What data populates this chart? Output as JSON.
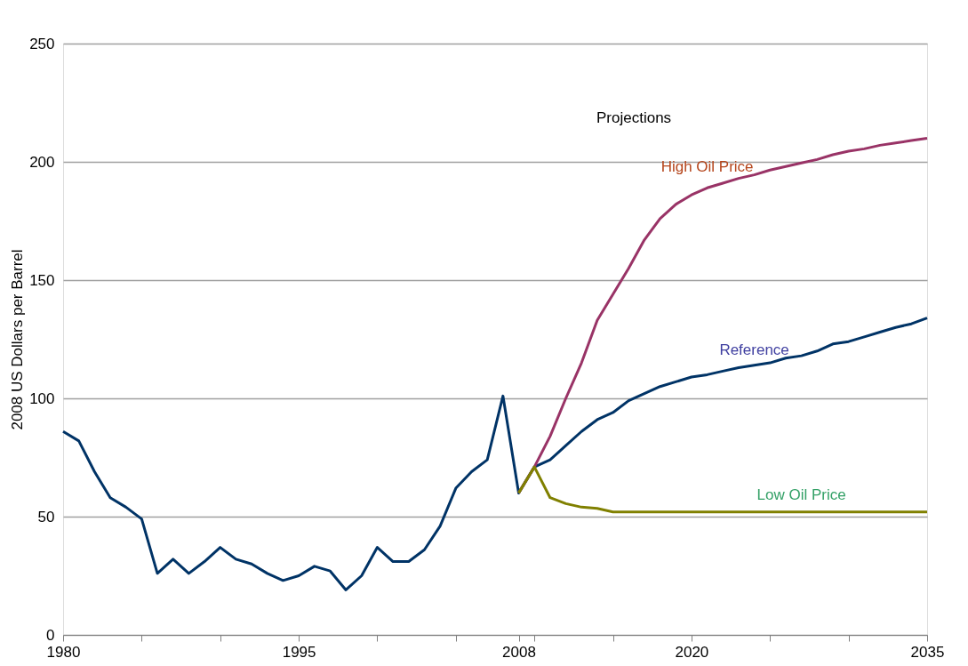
{
  "chart_data": {
    "type": "line",
    "ylabel": "2008 US Dollars per Barrel",
    "categories": [
      "1980",
      null,
      null,
      null,
      null,
      null,
      null,
      null,
      null,
      null,
      null,
      null,
      null,
      null,
      null,
      "1995",
      null,
      null,
      null,
      null,
      null,
      null,
      null,
      null,
      null,
      null,
      null,
      null,
      null,
      "2008",
      null,
      null,
      null,
      null,
      null,
      null,
      null,
      null,
      null,
      null,
      "2020",
      null,
      null,
      null,
      null,
      null,
      null,
      null,
      null,
      null,
      null,
      null,
      null,
      null,
      null,
      "2035"
    ],
    "series": [
      {
        "name": "Reference",
        "color": "#003366",
        "values": [
          86,
          82,
          69,
          58,
          54,
          49,
          26,
          32,
          26,
          31,
          37,
          32,
          30,
          26,
          23,
          25,
          29,
          27,
          19,
          25,
          37,
          31,
          31,
          36,
          46,
          62,
          69,
          74,
          101,
          60,
          71,
          74,
          80,
          86,
          91,
          94,
          99,
          102,
          105,
          107,
          109,
          110,
          111.5,
          113,
          114,
          115,
          117,
          118,
          120,
          123,
          124,
          126,
          128,
          130,
          131.5,
          134
        ]
      },
      {
        "name": "High Oil Price",
        "color": "#993366",
        "values": [
          null,
          null,
          null,
          null,
          null,
          null,
          null,
          null,
          null,
          null,
          null,
          null,
          null,
          null,
          null,
          null,
          null,
          null,
          null,
          null,
          null,
          null,
          null,
          null,
          null,
          null,
          null,
          null,
          null,
          60,
          71,
          84,
          100,
          115,
          133,
          144,
          155,
          167,
          176,
          182,
          186,
          189,
          191,
          193,
          194.5,
          196.5,
          198,
          199.5,
          201,
          203,
          204.5,
          205.5,
          207,
          208,
          209,
          210
        ]
      },
      {
        "name": "Low Oil Price",
        "color": "#808000",
        "values": [
          null,
          null,
          null,
          null,
          null,
          null,
          null,
          null,
          null,
          null,
          null,
          null,
          null,
          null,
          null,
          null,
          null,
          null,
          null,
          null,
          null,
          null,
          null,
          null,
          null,
          null,
          null,
          null,
          null,
          60,
          71,
          58,
          55.5,
          54,
          53.5,
          52,
          52,
          52,
          52,
          52,
          52,
          52,
          52,
          52,
          52,
          52,
          52,
          52,
          52,
          52,
          52,
          52,
          52,
          52,
          52,
          52
        ]
      }
    ],
    "ylim": [
      0,
      250
    ],
    "yticks": [
      0,
      50,
      100,
      150,
      200,
      250
    ],
    "grid": "y",
    "marker": "none",
    "line_style": "solid",
    "annotations": [
      "Projections"
    ]
  }
}
